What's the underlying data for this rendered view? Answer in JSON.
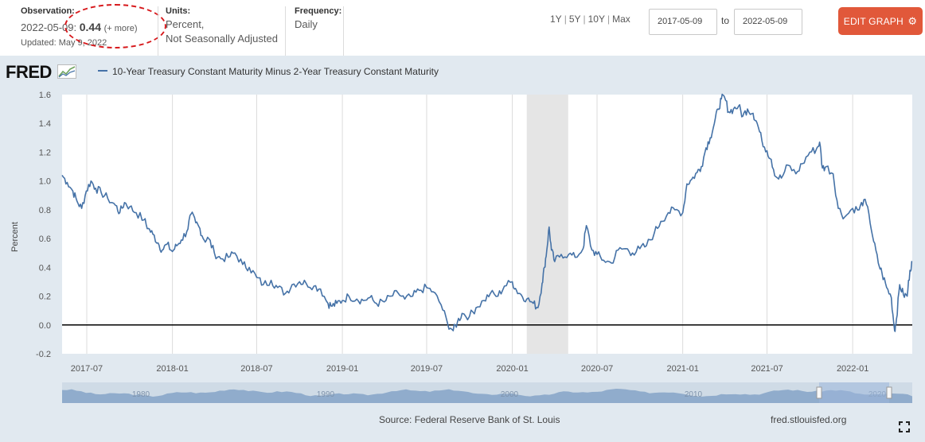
{
  "header": {
    "observation_label": "Observation:",
    "observation_date": "2022-05-09",
    "observation_sep": ":",
    "observation_value": "0.44",
    "observation_more": "(+ more)",
    "updated": "Updated: May 9, 2022",
    "units_label": "Units:",
    "units_line1": "Percent,",
    "units_line2": "Not Seasonally Adjusted",
    "frequency_label": "Frequency:",
    "frequency_value": "Daily",
    "ranges": [
      "1Y",
      "5Y",
      "10Y",
      "Max"
    ],
    "start_date": "2017-05-09",
    "to_label": "to",
    "end_date": "2022-05-09",
    "edit_graph_label": "EDIT GRAPH",
    "edit_icon": "gear-icon",
    "annotation_color": "#d7191c",
    "button_color": "#e1583a"
  },
  "panel": {
    "logo_text": "FRED",
    "series_title": "10-Year Treasury Constant Maturity Minus 2-Year Treasury Constant Maturity",
    "source": "Source: Federal Reserve Bank of St. Louis",
    "url": "fred.stlouisfed.org",
    "background": "#e1e9f0",
    "navigator_labels": [
      "1980",
      "1990",
      "2000",
      "2010",
      "2020"
    ]
  },
  "chart_data": {
    "type": "line",
    "title": "10-Year Treasury Constant Maturity Minus 2-Year Treasury Constant Maturity",
    "ylabel": "Percent",
    "xlabel": "",
    "ylim": [
      -0.2,
      1.6
    ],
    "xlim": [
      "2017-05-09",
      "2022-05-09"
    ],
    "yticks": [
      "1.6",
      "1.4",
      "1.2",
      "1.0",
      "0.8",
      "0.6",
      "0.4",
      "0.2",
      "0.0",
      "-0.2"
    ],
    "xticks": [
      "2017-07",
      "2018-01",
      "2018-07",
      "2019-01",
      "2019-07",
      "2020-01",
      "2020-07",
      "2021-01",
      "2021-07",
      "2022-01"
    ],
    "recession": {
      "start": "2020-02-01",
      "end": "2020-04-30"
    },
    "zero_line": true,
    "grid": "vertical",
    "line_color": "#4572a7",
    "series": [
      {
        "name": "10-Year Treasury Constant Maturity Minus 2-Year Treasury Constant Maturity",
        "points": [
          [
            "2017-05-09",
            1.04
          ],
          [
            "2017-05-20",
            0.99
          ],
          [
            "2017-06-01",
            0.93
          ],
          [
            "2017-06-10",
            0.86
          ],
          [
            "2017-06-20",
            0.81
          ],
          [
            "2017-06-30",
            0.93
          ],
          [
            "2017-07-10",
            1.0
          ],
          [
            "2017-07-20",
            0.95
          ],
          [
            "2017-08-01",
            0.92
          ],
          [
            "2017-08-15",
            0.88
          ],
          [
            "2017-09-01",
            0.83
          ],
          [
            "2017-09-10",
            0.78
          ],
          [
            "2017-09-20",
            0.85
          ],
          [
            "2017-10-01",
            0.82
          ],
          [
            "2017-10-15",
            0.78
          ],
          [
            "2017-11-01",
            0.73
          ],
          [
            "2017-11-10",
            0.67
          ],
          [
            "2017-11-20",
            0.63
          ],
          [
            "2017-12-01",
            0.57
          ],
          [
            "2017-12-10",
            0.52
          ],
          [
            "2017-12-20",
            0.56
          ],
          [
            "2018-01-01",
            0.51
          ],
          [
            "2018-01-10",
            0.55
          ],
          [
            "2018-01-20",
            0.59
          ],
          [
            "2018-02-01",
            0.65
          ],
          [
            "2018-02-10",
            0.77
          ],
          [
            "2018-02-20",
            0.71
          ],
          [
            "2018-03-01",
            0.67
          ],
          [
            "2018-03-10",
            0.59
          ],
          [
            "2018-03-20",
            0.6
          ],
          [
            "2018-04-01",
            0.5
          ],
          [
            "2018-04-15",
            0.46
          ],
          [
            "2018-05-01",
            0.47
          ],
          [
            "2018-05-15",
            0.5
          ],
          [
            "2018-06-01",
            0.42
          ],
          [
            "2018-06-15",
            0.4
          ],
          [
            "2018-07-01",
            0.33
          ],
          [
            "2018-07-15",
            0.28
          ],
          [
            "2018-08-01",
            0.31
          ],
          [
            "2018-08-15",
            0.26
          ],
          [
            "2018-09-01",
            0.22
          ],
          [
            "2018-09-15",
            0.28
          ],
          [
            "2018-10-01",
            0.3
          ],
          [
            "2018-10-15",
            0.29
          ],
          [
            "2018-11-01",
            0.27
          ],
          [
            "2018-11-15",
            0.25
          ],
          [
            "2018-12-01",
            0.15
          ],
          [
            "2018-12-10",
            0.13
          ],
          [
            "2018-12-20",
            0.15
          ],
          [
            "2019-01-01",
            0.17
          ],
          [
            "2019-01-15",
            0.2
          ],
          [
            "2019-02-01",
            0.18
          ],
          [
            "2019-02-15",
            0.17
          ],
          [
            "2019-03-01",
            0.19
          ],
          [
            "2019-03-15",
            0.15
          ],
          [
            "2019-04-01",
            0.16
          ],
          [
            "2019-04-15",
            0.2
          ],
          [
            "2019-05-01",
            0.22
          ],
          [
            "2019-05-15",
            0.18
          ],
          [
            "2019-06-01",
            0.2
          ],
          [
            "2019-06-15",
            0.24
          ],
          [
            "2019-07-01",
            0.26
          ],
          [
            "2019-07-15",
            0.23
          ],
          [
            "2019-08-01",
            0.14
          ],
          [
            "2019-08-15",
            0.01
          ],
          [
            "2019-08-27",
            -0.04
          ],
          [
            "2019-09-05",
            0.02
          ],
          [
            "2019-09-15",
            0.08
          ],
          [
            "2019-10-01",
            0.06
          ],
          [
            "2019-10-15",
            0.12
          ],
          [
            "2019-11-01",
            0.17
          ],
          [
            "2019-11-15",
            0.22
          ],
          [
            "2019-12-01",
            0.2
          ],
          [
            "2019-12-15",
            0.27
          ],
          [
            "2020-01-01",
            0.3
          ],
          [
            "2020-01-10",
            0.24
          ],
          [
            "2020-01-20",
            0.21
          ],
          [
            "2020-02-01",
            0.18
          ],
          [
            "2020-02-15",
            0.15
          ],
          [
            "2020-02-25",
            0.12
          ],
          [
            "2020-03-05",
            0.29
          ],
          [
            "2020-03-10",
            0.4
          ],
          [
            "2020-03-15",
            0.52
          ],
          [
            "2020-03-20",
            0.68
          ],
          [
            "2020-03-25",
            0.52
          ],
          [
            "2020-04-01",
            0.44
          ],
          [
            "2020-04-15",
            0.49
          ],
          [
            "2020-05-01",
            0.49
          ],
          [
            "2020-05-15",
            0.47
          ],
          [
            "2020-06-01",
            0.53
          ],
          [
            "2020-06-08",
            0.69
          ],
          [
            "2020-06-20",
            0.52
          ],
          [
            "2020-07-01",
            0.49
          ],
          [
            "2020-07-15",
            0.45
          ],
          [
            "2020-08-01",
            0.43
          ],
          [
            "2020-08-15",
            0.52
          ],
          [
            "2020-09-01",
            0.53
          ],
          [
            "2020-09-15",
            0.5
          ],
          [
            "2020-10-01",
            0.53
          ],
          [
            "2020-10-15",
            0.55
          ],
          [
            "2020-11-01",
            0.64
          ],
          [
            "2020-11-15",
            0.72
          ],
          [
            "2020-12-01",
            0.78
          ],
          [
            "2020-12-15",
            0.8
          ],
          [
            "2021-01-01",
            0.78
          ],
          [
            "2021-01-10",
            0.98
          ],
          [
            "2021-01-20",
            1.01
          ],
          [
            "2021-02-01",
            1.06
          ],
          [
            "2021-02-10",
            1.1
          ],
          [
            "2021-02-20",
            1.23
          ],
          [
            "2021-03-01",
            1.3
          ],
          [
            "2021-03-10",
            1.4
          ],
          [
            "2021-03-18",
            1.5
          ],
          [
            "2021-03-25",
            1.57
          ],
          [
            "2021-04-01",
            1.58
          ],
          [
            "2021-04-10",
            1.48
          ],
          [
            "2021-04-20",
            1.5
          ],
          [
            "2021-05-01",
            1.52
          ],
          [
            "2021-05-10",
            1.45
          ],
          [
            "2021-05-20",
            1.5
          ],
          [
            "2021-06-01",
            1.47
          ],
          [
            "2021-06-10",
            1.4
          ],
          [
            "2021-06-20",
            1.28
          ],
          [
            "2021-07-01",
            1.21
          ],
          [
            "2021-07-10",
            1.15
          ],
          [
            "2021-07-20",
            1.03
          ],
          [
            "2021-08-01",
            1.02
          ],
          [
            "2021-08-15",
            1.11
          ],
          [
            "2021-09-01",
            1.05
          ],
          [
            "2021-09-15",
            1.12
          ],
          [
            "2021-10-01",
            1.2
          ],
          [
            "2021-10-15",
            1.22
          ],
          [
            "2021-10-22",
            1.27
          ],
          [
            "2021-10-28",
            1.09
          ],
          [
            "2021-11-05",
            1.1
          ],
          [
            "2021-11-20",
            1.05
          ],
          [
            "2021-12-01",
            0.81
          ],
          [
            "2021-12-15",
            0.75
          ],
          [
            "2022-01-01",
            0.81
          ],
          [
            "2022-01-15",
            0.8
          ],
          [
            "2022-01-25",
            0.87
          ],
          [
            "2022-02-05",
            0.77
          ],
          [
            "2022-02-15",
            0.58
          ],
          [
            "2022-02-25",
            0.43
          ],
          [
            "2022-03-05",
            0.36
          ],
          [
            "2022-03-15",
            0.26
          ],
          [
            "2022-03-25",
            0.19
          ],
          [
            "2022-04-01",
            -0.04
          ],
          [
            "2022-04-05",
            0.04
          ],
          [
            "2022-04-12",
            0.28
          ],
          [
            "2022-04-20",
            0.21
          ],
          [
            "2022-04-28",
            0.2
          ],
          [
            "2022-05-04",
            0.38
          ],
          [
            "2022-05-09",
            0.44
          ]
        ]
      }
    ]
  }
}
